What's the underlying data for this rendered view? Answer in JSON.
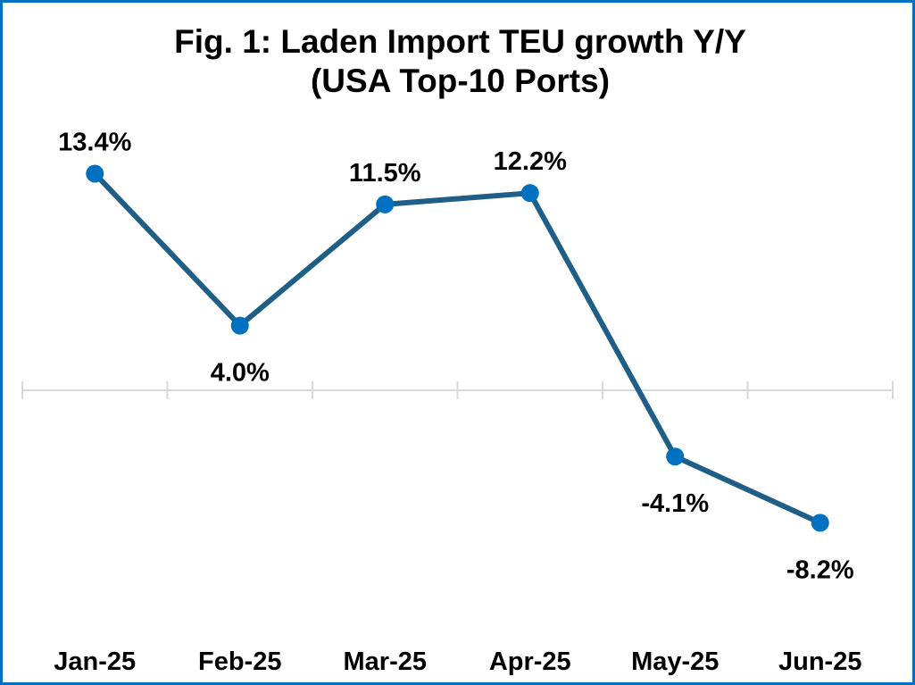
{
  "chart_data": {
    "type": "line",
    "title": "Fig. 1: Laden Import TEU growth Y/Y",
    "subtitle": "(USA Top-10 Ports)",
    "categories": [
      "Jan-25",
      "Feb-25",
      "Mar-25",
      "Apr-25",
      "May-25",
      "Jun-25"
    ],
    "series": [
      {
        "name": "Laden Import TEU growth Y/Y",
        "values": [
          13.4,
          4.0,
          11.5,
          12.2,
          -4.1,
          -8.2
        ],
        "labels": [
          "13.4%",
          "4.0%",
          "11.5%",
          "12.2%",
          "-4.1%",
          "-8.2%"
        ],
        "label_positions": [
          "above",
          "below",
          "above",
          "above",
          "below",
          "below"
        ],
        "line_color": "#1F5F87",
        "marker_color": "#0070C0"
      }
    ],
    "xlabel": "",
    "ylabel": "",
    "ylim": [
      -10.5,
      16
    ],
    "grid": false,
    "legend": "none",
    "axis_color": "#D9D9D9",
    "border_color": "#0070C0"
  }
}
